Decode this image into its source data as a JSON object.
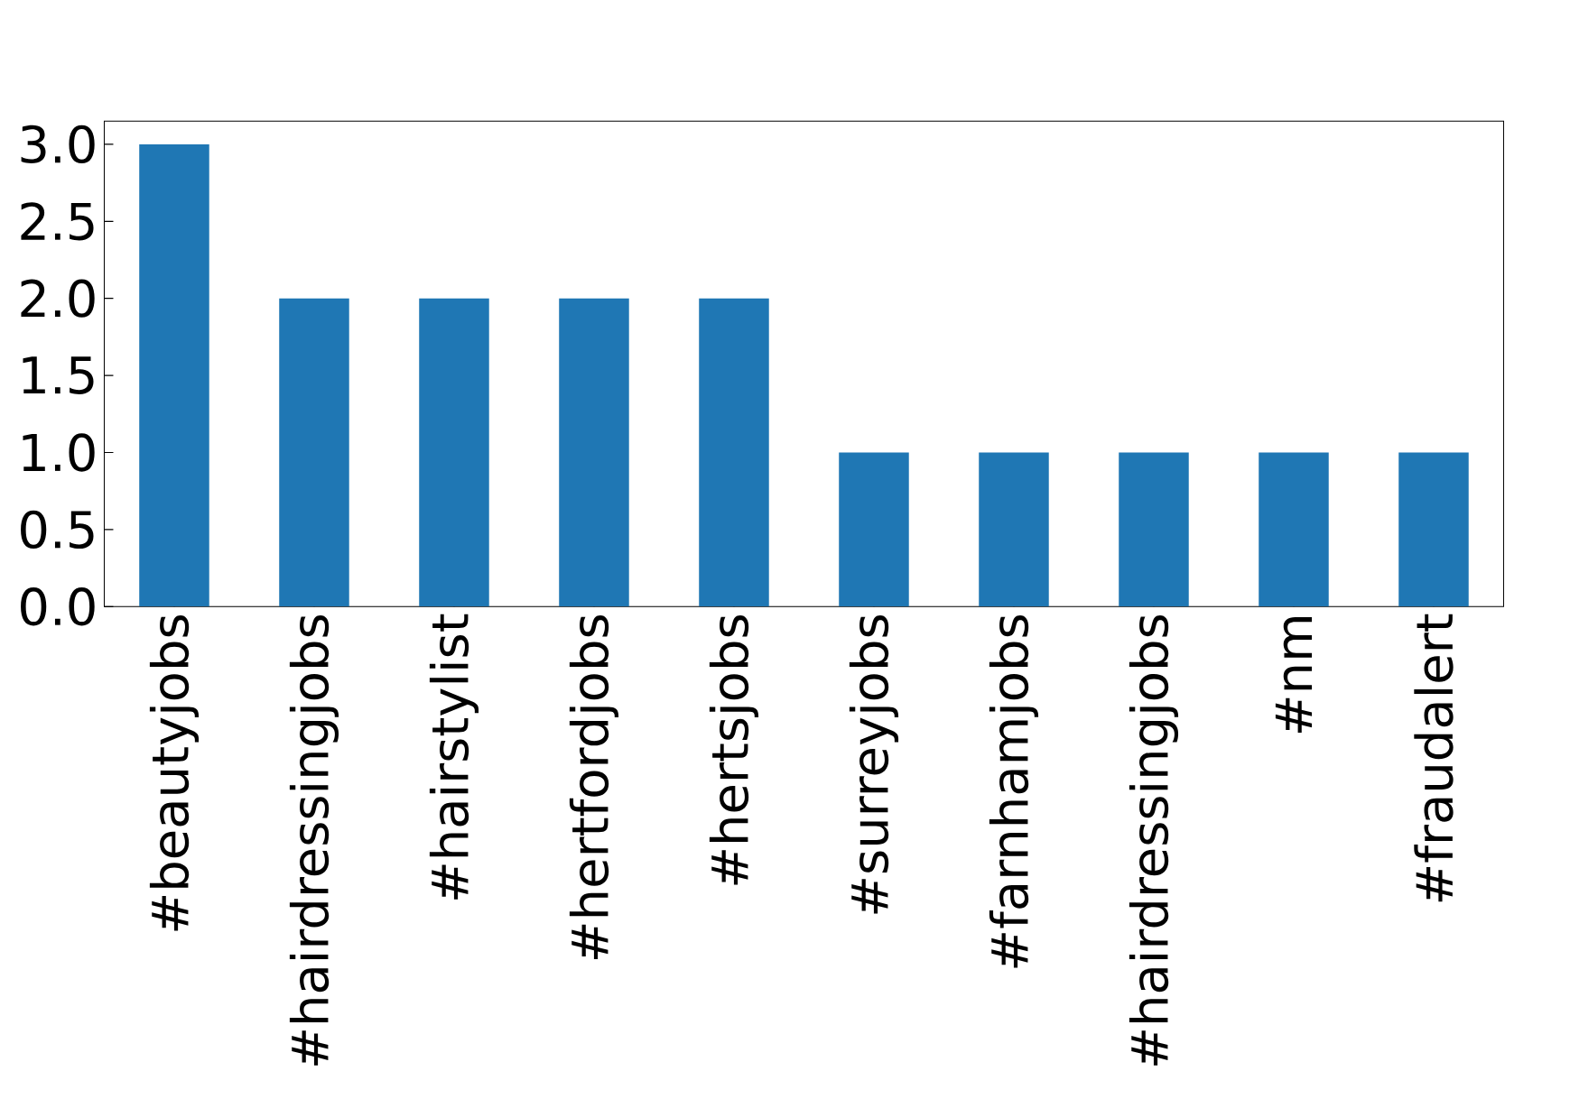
{
  "chart_data": {
    "type": "bar",
    "categories": [
      "#beautyjobs",
      "#hairdressingjobs",
      "#hairstylist",
      "#hertfordjobs",
      "#hertsjobs",
      "#surreyjobs",
      "#farnhamjobs",
      "#hairdressingjobs",
      "#nm",
      "#fraudalert"
    ],
    "values": [
      3,
      2,
      2,
      2,
      2,
      1,
      1,
      1,
      1,
      1
    ],
    "color": "#1f77b4",
    "ylim": [
      0,
      3.15
    ],
    "yticks": [
      {
        "value": 0,
        "label": "0.0"
      },
      {
        "value": 0.5,
        "label": "0.5"
      },
      {
        "value": 1,
        "label": "1.0"
      },
      {
        "value": 1.5,
        "label": "1.5"
      },
      {
        "value": 2,
        "label": "2.0"
      },
      {
        "value": 2.5,
        "label": "2.5"
      },
      {
        "value": 3,
        "label": "3.0"
      }
    ]
  }
}
